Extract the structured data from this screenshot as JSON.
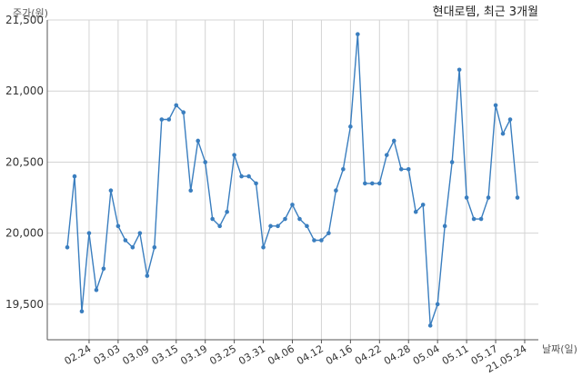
{
  "chart_data": {
    "type": "line",
    "title": "현대로템, 최근 3개월",
    "ylabel": "주가(원)",
    "xlabel": "날짜(일)",
    "ylim": [
      19250,
      21500
    ],
    "yticks": [
      19500,
      20000,
      20500,
      21000,
      21500
    ],
    "ytick_labels": [
      "19,500",
      "20,000",
      "20,500",
      "21,000",
      "21,500"
    ],
    "xtick_labels": [
      "02.24",
      "03.03",
      "03.09",
      "03.15",
      "03.19",
      "03.25",
      "03.31",
      "04.06",
      "04.12",
      "04.16",
      "04.22",
      "04.28",
      "05.04",
      "05.11",
      "05.17",
      "21.05.24"
    ],
    "xtick_index": [
      3,
      7,
      11,
      15,
      19,
      23,
      27,
      31,
      35,
      39,
      43,
      47,
      51,
      55,
      59,
      63
    ],
    "grid": true,
    "line_color": "#3a7ebf",
    "series": [
      {
        "values": [
          19900,
          20400,
          19450,
          20000,
          19600,
          19750,
          20300,
          20050,
          19950,
          19900,
          20000,
          19700,
          19900,
          20800,
          20800,
          20900,
          20850,
          20300,
          20650,
          20500,
          20100,
          20050,
          20150,
          20550,
          20400,
          20400,
          20350,
          19900,
          20050,
          20050,
          20100,
          20200,
          20100,
          20050,
          19950,
          19950,
          20000,
          20300,
          20450,
          20750,
          21400,
          20350,
          20350,
          20350,
          20550,
          20650,
          20450,
          20450,
          20150,
          20200,
          19350,
          19500,
          20050,
          20500,
          21150,
          20250,
          20100,
          20100,
          20250,
          20900,
          20700,
          20800,
          20250
        ]
      }
    ]
  }
}
